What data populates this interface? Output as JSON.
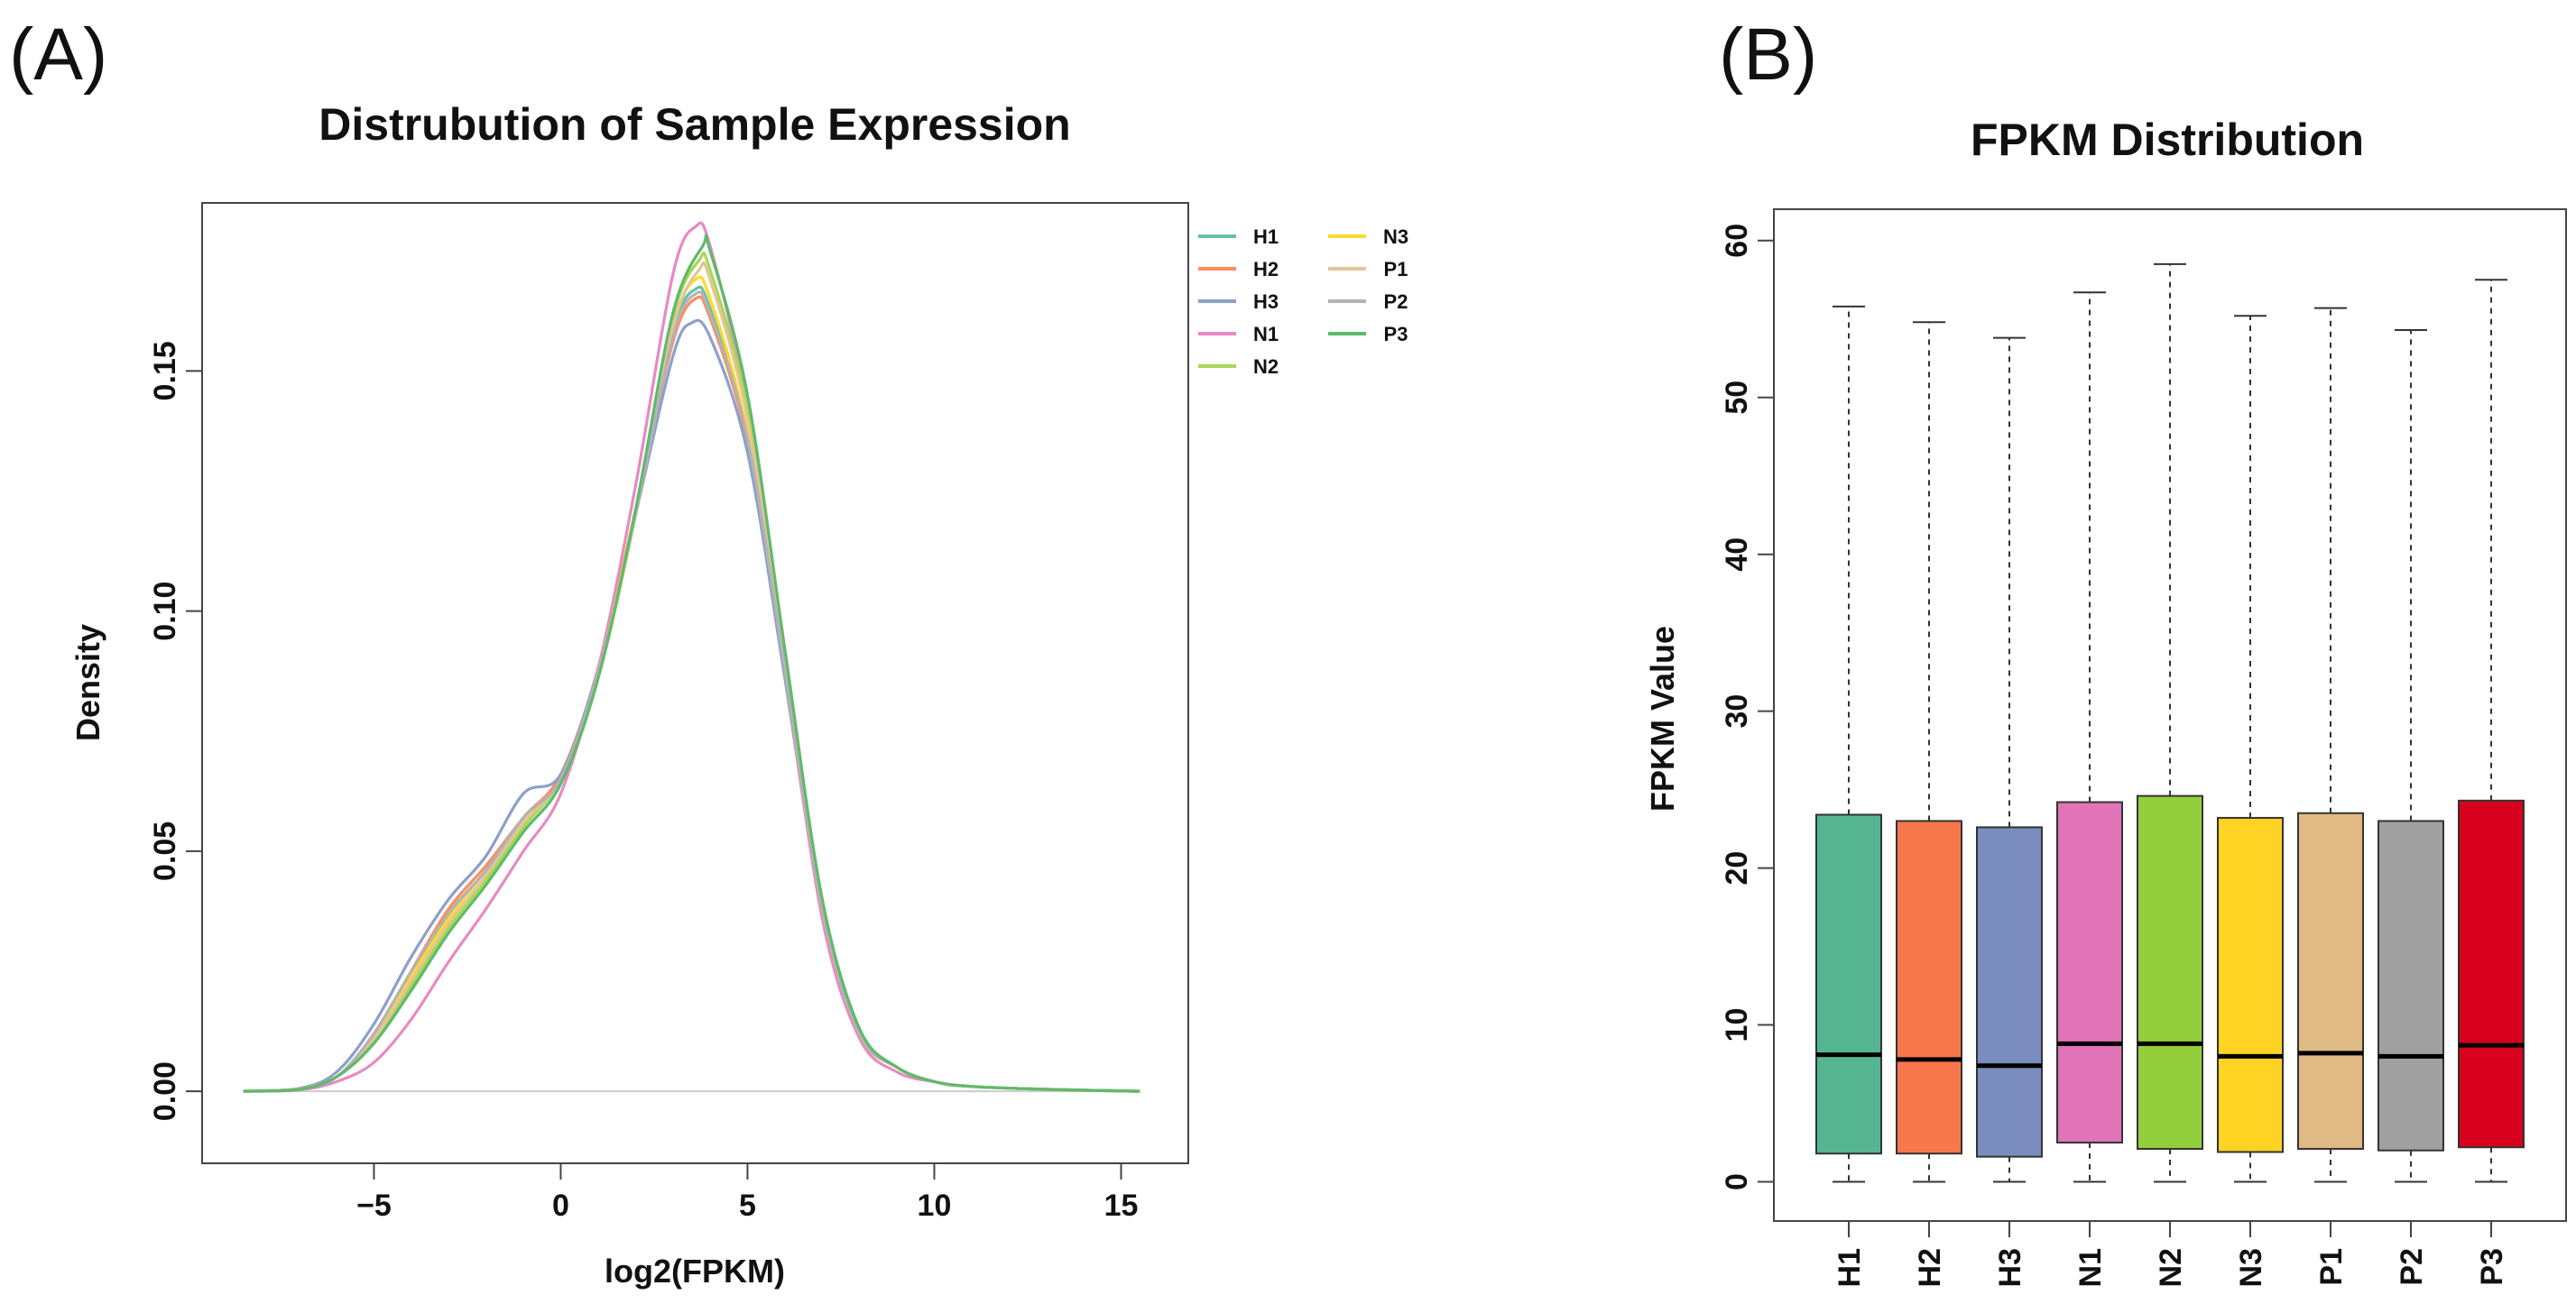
{
  "panel_a": {
    "label": "(A)",
    "chart_data": {
      "type": "line",
      "title": "Distrubution of Sample Expression",
      "xlabel": "log2(FPKM)",
      "ylabel": "Density",
      "xlim": [
        -9.6,
        16.8
      ],
      "ylim": [
        -0.015,
        0.185
      ],
      "x_ticks": [
        -5,
        0,
        5,
        10,
        15
      ],
      "x_tick_labels": [
        "−5",
        "0",
        "5",
        "10",
        "15"
      ],
      "y_ticks": [
        0.0,
        0.05,
        0.1,
        0.15
      ],
      "y_tick_labels": [
        "0.00",
        "0.05",
        "0.10",
        "0.15"
      ],
      "baseline": 0,
      "legend_position": "top-right",
      "series": [
        {
          "name": "H1",
          "color": "#66c2a5",
          "peak_x": 3.6,
          "peak": 0.167,
          "points": [
            [
              -8.5,
              0
            ],
            [
              -7,
              0.0005
            ],
            [
              -6,
              0.003
            ],
            [
              -5,
              0.011
            ],
            [
              -4,
              0.024
            ],
            [
              -3,
              0.037
            ],
            [
              -2,
              0.046
            ],
            [
              -1,
              0.057
            ],
            [
              0,
              0.065
            ],
            [
              1,
              0.087
            ],
            [
              2,
              0.12
            ],
            [
              3,
              0.158
            ],
            [
              3.6,
              0.167
            ],
            [
              4,
              0.163
            ],
            [
              5,
              0.136
            ],
            [
              6,
              0.088
            ],
            [
              7,
              0.038
            ],
            [
              8,
              0.012
            ],
            [
              9,
              0.005
            ],
            [
              10,
              0.002
            ],
            [
              11,
              0.001
            ],
            [
              13,
              0.0004
            ],
            [
              15.5,
              0
            ]
          ]
        },
        {
          "name": "H2",
          "color": "#fc8d62",
          "peak_x": 3.6,
          "peak": 0.165,
          "points": [
            [
              -8.5,
              0
            ],
            [
              -7,
              0.0005
            ],
            [
              -6,
              0.003
            ],
            [
              -5,
              0.011
            ],
            [
              -4,
              0.025
            ],
            [
              -3,
              0.038
            ],
            [
              -2,
              0.047
            ],
            [
              -1,
              0.057
            ],
            [
              0,
              0.066
            ],
            [
              1,
              0.088
            ],
            [
              2,
              0.121
            ],
            [
              3,
              0.156
            ],
            [
              3.6,
              0.165
            ],
            [
              4,
              0.161
            ],
            [
              5,
              0.135
            ],
            [
              6,
              0.087
            ],
            [
              7,
              0.038
            ],
            [
              8,
              0.012
            ],
            [
              9,
              0.005
            ],
            [
              10,
              0.002
            ],
            [
              11,
              0.001
            ],
            [
              13,
              0.0004
            ],
            [
              15.5,
              0
            ]
          ]
        },
        {
          "name": "H3",
          "color": "#8da0cb",
          "peak_x": 3.5,
          "peak": 0.16,
          "points": [
            [
              -8.5,
              0
            ],
            [
              -7,
              0.0006
            ],
            [
              -6,
              0.004
            ],
            [
              -5,
              0.014
            ],
            [
              -4,
              0.028
            ],
            [
              -3,
              0.04
            ],
            [
              -2,
              0.049
            ],
            [
              -1,
              0.062
            ],
            [
              0,
              0.066
            ],
            [
              1,
              0.088
            ],
            [
              2,
              0.12
            ],
            [
              3,
              0.153
            ],
            [
              3.5,
              0.16
            ],
            [
              4,
              0.157
            ],
            [
              5,
              0.133
            ],
            [
              6,
              0.086
            ],
            [
              7,
              0.037
            ],
            [
              8,
              0.012
            ],
            [
              9,
              0.005
            ],
            [
              10,
              0.002
            ],
            [
              11,
              0.001
            ],
            [
              13,
              0.0004
            ],
            [
              15.5,
              0
            ]
          ]
        },
        {
          "name": "N1",
          "color": "#e78ac3",
          "peak_x": 3.6,
          "peak": 0.18,
          "points": [
            [
              -8.5,
              0
            ],
            [
              -7,
              0.0003
            ],
            [
              -6,
              0.002
            ],
            [
              -5,
              0.006
            ],
            [
              -4,
              0.015
            ],
            [
              -3,
              0.027
            ],
            [
              -2,
              0.038
            ],
            [
              -1,
              0.05
            ],
            [
              0,
              0.062
            ],
            [
              1,
              0.088
            ],
            [
              2,
              0.126
            ],
            [
              3,
              0.17
            ],
            [
              3.6,
              0.18
            ],
            [
              4,
              0.176
            ],
            [
              5,
              0.142
            ],
            [
              6,
              0.088
            ],
            [
              7,
              0.036
            ],
            [
              8,
              0.011
            ],
            [
              9,
              0.004
            ],
            [
              10,
              0.002
            ],
            [
              11,
              0.001
            ],
            [
              13,
              0.0004
            ],
            [
              15.5,
              0
            ]
          ]
        },
        {
          "name": "N2",
          "color": "#a6d854",
          "peak_x": 3.7,
          "peak": 0.173,
          "points": [
            [
              -8.5,
              0
            ],
            [
              -7,
              0.0005
            ],
            [
              -6,
              0.003
            ],
            [
              -5,
              0.01
            ],
            [
              -4,
              0.022
            ],
            [
              -3,
              0.034
            ],
            [
              -2,
              0.044
            ],
            [
              -1,
              0.055
            ],
            [
              0,
              0.065
            ],
            [
              1,
              0.086
            ],
            [
              2,
              0.12
            ],
            [
              3,
              0.161
            ],
            [
              3.7,
              0.173
            ],
            [
              4,
              0.171
            ],
            [
              5,
              0.142
            ],
            [
              6,
              0.091
            ],
            [
              7,
              0.039
            ],
            [
              8,
              0.012
            ],
            [
              9,
              0.005
            ],
            [
              10,
              0.002
            ],
            [
              11,
              0.001
            ],
            [
              13,
              0.0004
            ],
            [
              15.5,
              0
            ]
          ]
        },
        {
          "name": "N3",
          "color": "#ffd92f",
          "peak_x": 3.6,
          "peak": 0.169,
          "points": [
            [
              -8.5,
              0
            ],
            [
              -7,
              0.0005
            ],
            [
              -6,
              0.003
            ],
            [
              -5,
              0.011
            ],
            [
              -4,
              0.024
            ],
            [
              -3,
              0.036
            ],
            [
              -2,
              0.046
            ],
            [
              -1,
              0.056
            ],
            [
              0,
              0.065
            ],
            [
              1,
              0.087
            ],
            [
              2,
              0.121
            ],
            [
              3,
              0.159
            ],
            [
              3.6,
              0.169
            ],
            [
              4,
              0.165
            ],
            [
              5,
              0.137
            ],
            [
              6,
              0.088
            ],
            [
              7,
              0.038
            ],
            [
              8,
              0.012
            ],
            [
              9,
              0.005
            ],
            [
              10,
              0.002
            ],
            [
              11,
              0.001
            ],
            [
              13,
              0.0004
            ],
            [
              15.5,
              0
            ]
          ]
        },
        {
          "name": "P1",
          "color": "#e5c494",
          "peak_x": 3.7,
          "peak": 0.171,
          "points": [
            [
              -8.5,
              0
            ],
            [
              -7,
              0.0005
            ],
            [
              -6,
              0.003
            ],
            [
              -5,
              0.011
            ],
            [
              -4,
              0.023
            ],
            [
              -3,
              0.035
            ],
            [
              -2,
              0.045
            ],
            [
              -1,
              0.056
            ],
            [
              0,
              0.065
            ],
            [
              1,
              0.087
            ],
            [
              2,
              0.12
            ],
            [
              3,
              0.159
            ],
            [
              3.7,
              0.171
            ],
            [
              4,
              0.169
            ],
            [
              5,
              0.14
            ],
            [
              6,
              0.09
            ],
            [
              7,
              0.039
            ],
            [
              8,
              0.012
            ],
            [
              9,
              0.005
            ],
            [
              10,
              0.002
            ],
            [
              11,
              0.001
            ],
            [
              13,
              0.0004
            ],
            [
              15.5,
              0
            ]
          ]
        },
        {
          "name": "P2",
          "color": "#b3b3b3",
          "peak_x": 3.6,
          "peak": 0.166,
          "points": [
            [
              -8.5,
              0
            ],
            [
              -7,
              0.0005
            ],
            [
              -6,
              0.003
            ],
            [
              -5,
              0.012
            ],
            [
              -4,
              0.025
            ],
            [
              -3,
              0.037
            ],
            [
              -2,
              0.046
            ],
            [
              -1,
              0.057
            ],
            [
              0,
              0.065
            ],
            [
              1,
              0.087
            ],
            [
              2,
              0.12
            ],
            [
              3,
              0.157
            ],
            [
              3.6,
              0.166
            ],
            [
              4,
              0.162
            ],
            [
              5,
              0.136
            ],
            [
              6,
              0.088
            ],
            [
              7,
              0.038
            ],
            [
              8,
              0.012
            ],
            [
              9,
              0.005
            ],
            [
              10,
              0.002
            ],
            [
              11,
              0.001
            ],
            [
              13,
              0.0004
            ],
            [
              15.5,
              0
            ]
          ]
        },
        {
          "name": "P3",
          "color": "#5fba6b",
          "peak_x": 3.8,
          "peak": 0.176,
          "points": [
            [
              -8.5,
              0
            ],
            [
              -7,
              0.0004
            ],
            [
              -6,
              0.003
            ],
            [
              -5,
              0.01
            ],
            [
              -4,
              0.021
            ],
            [
              -3,
              0.033
            ],
            [
              -2,
              0.043
            ],
            [
              -1,
              0.054
            ],
            [
              0,
              0.064
            ],
            [
              1,
              0.086
            ],
            [
              2,
              0.121
            ],
            [
              3,
              0.162
            ],
            [
              3.8,
              0.176
            ],
            [
              4,
              0.175
            ],
            [
              5,
              0.145
            ],
            [
              6,
              0.092
            ],
            [
              7,
              0.04
            ],
            [
              8,
              0.013
            ],
            [
              9,
              0.005
            ],
            [
              10,
              0.002
            ],
            [
              11,
              0.001
            ],
            [
              13,
              0.0004
            ],
            [
              15.5,
              0
            ]
          ]
        }
      ]
    }
  },
  "panel_b": {
    "label": "(B)",
    "chart_data": {
      "type": "box",
      "title": "FPKM Distribution",
      "xlabel": "",
      "ylabel": "FPKM Value",
      "ylim": [
        -2.5,
        62
      ],
      "y_ticks": [
        0,
        10,
        20,
        30,
        40,
        50,
        60
      ],
      "y_tick_labels": [
        "0",
        "10",
        "20",
        "30",
        "40",
        "50",
        "60"
      ],
      "categories": [
        "H1",
        "H2",
        "H3",
        "N1",
        "N2",
        "N3",
        "P1",
        "P2",
        "P3"
      ],
      "boxes": [
        {
          "name": "H1",
          "color": "#56b591",
          "min": 0,
          "q1": 1.8,
          "median": 8.1,
          "q3": 23.4,
          "max": 55.8
        },
        {
          "name": "H2",
          "color": "#f8774c",
          "min": 0,
          "q1": 1.8,
          "median": 7.8,
          "q3": 23.0,
          "max": 54.8
        },
        {
          "name": "H3",
          "color": "#7b8cbe",
          "min": 0,
          "q1": 1.6,
          "median": 7.4,
          "q3": 22.6,
          "max": 53.8
        },
        {
          "name": "N1",
          "color": "#e074b6",
          "min": 0,
          "q1": 2.5,
          "median": 8.8,
          "q3": 24.2,
          "max": 56.7
        },
        {
          "name": "N2",
          "color": "#93cf3c",
          "min": 0,
          "q1": 2.1,
          "median": 8.8,
          "q3": 24.6,
          "max": 58.5
        },
        {
          "name": "N3",
          "color": "#fed323",
          "min": 0,
          "q1": 1.9,
          "median": 8.0,
          "q3": 23.2,
          "max": 55.2
        },
        {
          "name": "P1",
          "color": "#dfba85",
          "min": 0,
          "q1": 2.1,
          "median": 8.2,
          "q3": 23.5,
          "max": 55.7
        },
        {
          "name": "P2",
          "color": "#a0a0a0",
          "min": 0,
          "q1": 2.0,
          "median": 8.0,
          "q3": 23.0,
          "max": 54.3
        },
        {
          "name": "P3",
          "color": "#d7001d",
          "min": 0,
          "q1": 2.2,
          "median": 8.7,
          "q3": 24.3,
          "max": 57.5
        }
      ]
    }
  }
}
